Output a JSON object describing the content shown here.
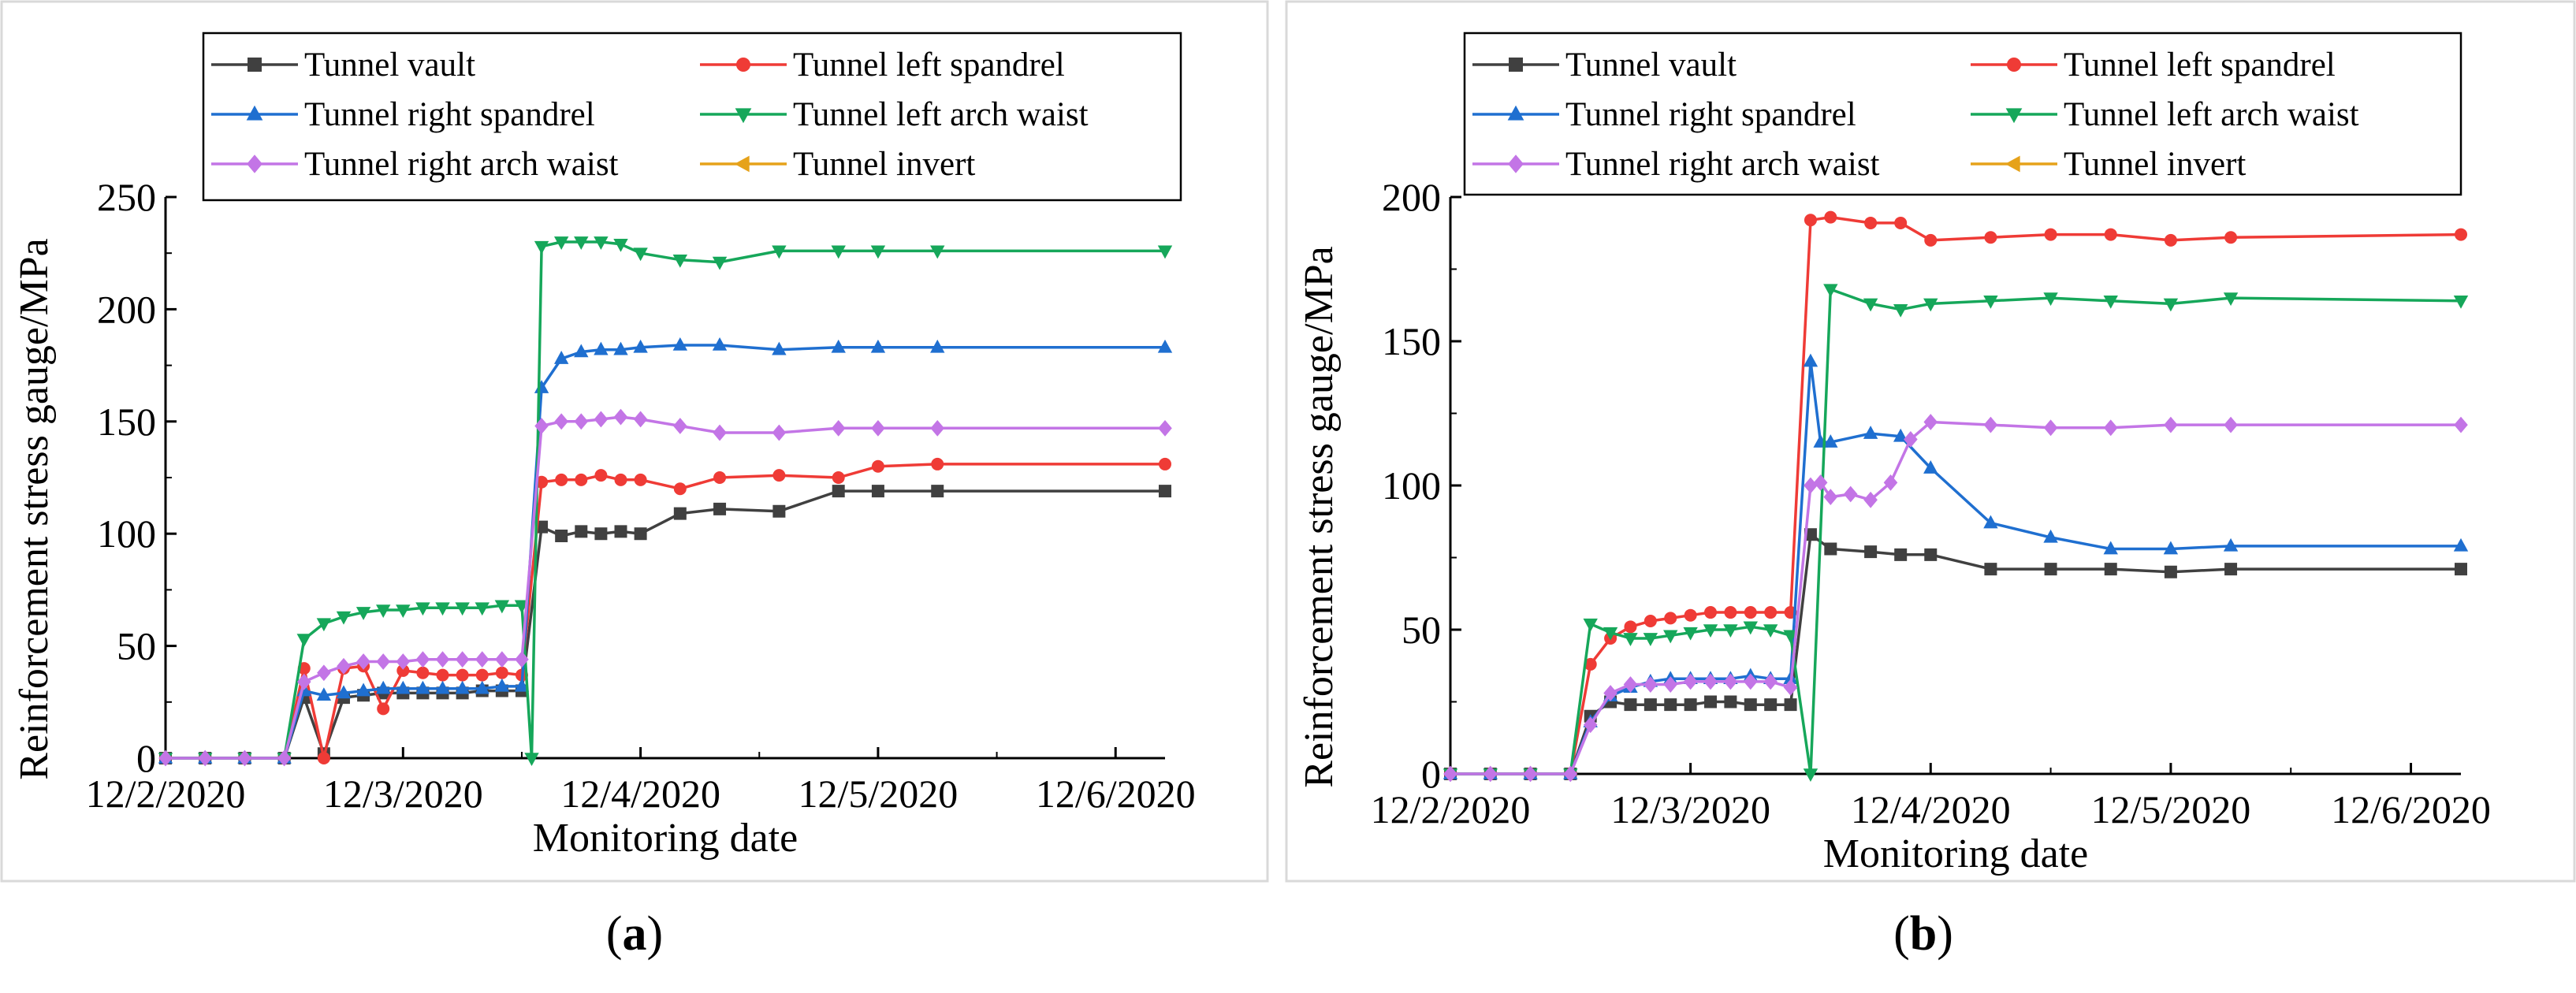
{
  "chart_data": [
    {
      "type": "line",
      "panel_label": "a",
      "xlabel": "Monitoring date",
      "ylabel": "Reinforcement stress gauge/MPa",
      "x_unit": "date",
      "xlim": [
        "12/2/2020 00:00",
        "12/6/2020 05:00"
      ],
      "ylim": [
        0,
        250
      ],
      "x_ticks": [
        "12/2/2020",
        "12/3/2020",
        "12/4/2020",
        "12/5/2020",
        "12/6/2020"
      ],
      "y_ticks": [
        0,
        50,
        100,
        150,
        200,
        250
      ],
      "grid": false,
      "legend_placement": "top",
      "series": [
        {
          "name": "Tunnel vault",
          "color": "#404040",
          "marker": "square",
          "x": [
            "12/2/2020 00:00",
            "12/2/2020 04:00",
            "12/2/2020 08:00",
            "12/2/2020 12:00",
            "12/2/2020 14:00",
            "12/2/2020 16:00",
            "12/2/2020 18:00",
            "12/2/2020 20:00",
            "12/2/2020 22:00",
            "12/3/2020 00:00",
            "12/3/2020 02:00",
            "12/3/2020 04:00",
            "12/3/2020 06:00",
            "12/3/2020 08:00",
            "12/3/2020 10:00",
            "12/3/2020 12:00",
            "12/3/2020 14:00",
            "12/3/2020 16:00",
            "12/3/2020 18:00",
            "12/3/2020 20:00",
            "12/3/2020 22:00",
            "12/4/2020 00:00",
            "12/4/2020 04:00",
            "12/4/2020 08:00",
            "12/4/2020 14:00",
            "12/4/2020 20:00",
            "12/5/2020 00:00",
            "12/5/2020 06:00",
            "12/6/2020 05:00"
          ],
          "y": [
            0,
            0,
            0,
            0,
            27,
            2,
            27,
            28,
            29,
            29,
            29,
            29,
            29,
            30,
            30,
            30,
            103,
            99,
            101,
            100,
            101,
            100,
            109,
            111,
            110,
            119,
            119,
            119,
            119
          ]
        },
        {
          "name": "Tunnel left spandrel",
          "color": "#ef3b36",
          "marker": "circle",
          "x": [
            "12/2/2020 00:00",
            "12/2/2020 04:00",
            "12/2/2020 08:00",
            "12/2/2020 12:00",
            "12/2/2020 14:00",
            "12/2/2020 16:00",
            "12/2/2020 18:00",
            "12/2/2020 20:00",
            "12/2/2020 22:00",
            "12/3/2020 00:00",
            "12/3/2020 02:00",
            "12/3/2020 04:00",
            "12/3/2020 06:00",
            "12/3/2020 08:00",
            "12/3/2020 10:00",
            "12/3/2020 12:00",
            "12/3/2020 14:00",
            "12/3/2020 16:00",
            "12/3/2020 18:00",
            "12/3/2020 20:00",
            "12/3/2020 22:00",
            "12/4/2020 00:00",
            "12/4/2020 04:00",
            "12/4/2020 08:00",
            "12/4/2020 14:00",
            "12/4/2020 20:00",
            "12/5/2020 00:00",
            "12/5/2020 06:00",
            "12/6/2020 05:00"
          ],
          "y": [
            0,
            0,
            0,
            0,
            40,
            0,
            40,
            41,
            22,
            39,
            38,
            37,
            37,
            37,
            38,
            37,
            123,
            124,
            124,
            126,
            124,
            124,
            120,
            125,
            126,
            125,
            130,
            131,
            131
          ]
        },
        {
          "name": "Tunnel right spandrel",
          "color": "#1f6fd0",
          "marker": "triangle-up",
          "x": [
            "12/2/2020 00:00",
            "12/2/2020 04:00",
            "12/2/2020 08:00",
            "12/2/2020 12:00",
            "12/2/2020 14:00",
            "12/2/2020 16:00",
            "12/2/2020 18:00",
            "12/2/2020 20:00",
            "12/2/2020 22:00",
            "12/3/2020 00:00",
            "12/3/2020 02:00",
            "12/3/2020 04:00",
            "12/3/2020 06:00",
            "12/3/2020 08:00",
            "12/3/2020 10:00",
            "12/3/2020 12:00",
            "12/3/2020 14:00",
            "12/3/2020 16:00",
            "12/3/2020 18:00",
            "12/3/2020 20:00",
            "12/3/2020 22:00",
            "12/4/2020 00:00",
            "12/4/2020 04:00",
            "12/4/2020 08:00",
            "12/4/2020 14:00",
            "12/4/2020 20:00",
            "12/5/2020 00:00",
            "12/5/2020 06:00",
            "12/6/2020 05:00"
          ],
          "y": [
            0,
            0,
            0,
            0,
            30,
            28,
            29,
            30,
            31,
            31,
            31,
            31,
            31,
            31,
            32,
            32,
            165,
            178,
            181,
            182,
            182,
            183,
            184,
            184,
            182,
            183,
            183,
            183,
            183
          ]
        },
        {
          "name": "Tunnel left arch waist",
          "color": "#16a75a",
          "marker": "triangle-down",
          "x": [
            "12/2/2020 00:00",
            "12/2/2020 04:00",
            "12/2/2020 08:00",
            "12/2/2020 12:00",
            "12/2/2020 14:00",
            "12/2/2020 16:00",
            "12/2/2020 18:00",
            "12/2/2020 20:00",
            "12/2/2020 22:00",
            "12/3/2020 00:00",
            "12/3/2020 02:00",
            "12/3/2020 04:00",
            "12/3/2020 06:00",
            "12/3/2020 08:00",
            "12/3/2020 10:00",
            "12/3/2020 12:00",
            "12/3/2020 13:00",
            "12/3/2020 14:00",
            "12/3/2020 16:00",
            "12/3/2020 18:00",
            "12/3/2020 20:00",
            "12/3/2020 22:00",
            "12/4/2020 00:00",
            "12/4/2020 04:00",
            "12/4/2020 08:00",
            "12/4/2020 14:00",
            "12/4/2020 20:00",
            "12/5/2020 00:00",
            "12/5/2020 06:00",
            "12/6/2020 05:00"
          ],
          "y": [
            0,
            0,
            0,
            0,
            53,
            60,
            63,
            65,
            66,
            66,
            67,
            67,
            67,
            67,
            68,
            68,
            0,
            228,
            230,
            230,
            230,
            229,
            225,
            222,
            221,
            226,
            226,
            226,
            226,
            226
          ]
        },
        {
          "name": "Tunnel right arch waist",
          "color": "#c375e6",
          "marker": "diamond",
          "x": [
            "12/2/2020 00:00",
            "12/2/2020 04:00",
            "12/2/2020 08:00",
            "12/2/2020 12:00",
            "12/2/2020 14:00",
            "12/2/2020 16:00",
            "12/2/2020 18:00",
            "12/2/2020 20:00",
            "12/2/2020 22:00",
            "12/3/2020 00:00",
            "12/3/2020 02:00",
            "12/3/2020 04:00",
            "12/3/2020 06:00",
            "12/3/2020 08:00",
            "12/3/2020 10:00",
            "12/3/2020 12:00",
            "12/3/2020 14:00",
            "12/3/2020 16:00",
            "12/3/2020 18:00",
            "12/3/2020 20:00",
            "12/3/2020 22:00",
            "12/4/2020 00:00",
            "12/4/2020 04:00",
            "12/4/2020 08:00",
            "12/4/2020 14:00",
            "12/4/2020 20:00",
            "12/5/2020 00:00",
            "12/5/2020 06:00",
            "12/6/2020 05:00"
          ],
          "y": [
            0,
            0,
            0,
            0,
            34,
            38,
            41,
            43,
            43,
            43,
            44,
            44,
            44,
            44,
            44,
            44,
            148,
            150,
            150,
            151,
            152,
            151,
            148,
            145,
            145,
            147,
            147,
            147,
            147
          ]
        },
        {
          "name": "Tunnel invert",
          "color": "#e6a21a",
          "marker": "triangle-left",
          "x": [],
          "y": []
        }
      ]
    },
    {
      "type": "line",
      "panel_label": "b",
      "xlabel": "Monitoring date",
      "ylabel": "Reinforcement stress gauge/MPa",
      "x_unit": "date",
      "xlim": [
        "12/2/2020 00:00",
        "12/6/2020 05:00"
      ],
      "ylim": [
        0,
        200
      ],
      "x_ticks": [
        "12/2/2020",
        "12/3/2020",
        "12/4/2020",
        "12/5/2020",
        "12/6/2020"
      ],
      "y_ticks": [
        0,
        50,
        100,
        150,
        200
      ],
      "grid": false,
      "legend_placement": "top",
      "series": [
        {
          "name": "Tunnel vault",
          "color": "#404040",
          "marker": "square",
          "x": [
            "12/2/2020 00:00",
            "12/2/2020 04:00",
            "12/2/2020 08:00",
            "12/2/2020 12:00",
            "12/2/2020 14:00",
            "12/2/2020 16:00",
            "12/2/2020 18:00",
            "12/2/2020 20:00",
            "12/2/2020 22:00",
            "12/3/2020 00:00",
            "12/3/2020 02:00",
            "12/3/2020 04:00",
            "12/3/2020 06:00",
            "12/3/2020 08:00",
            "12/3/2020 10:00",
            "12/3/2020 12:00",
            "12/3/2020 14:00",
            "12/3/2020 18:00",
            "12/3/2020 21:00",
            "12/4/2020 00:00",
            "12/4/2020 06:00",
            "12/4/2020 12:00",
            "12/4/2020 18:00",
            "12/5/2020 00:00",
            "12/5/2020 06:00",
            "12/6/2020 05:00"
          ],
          "y": [
            0,
            0,
            0,
            0,
            20,
            25,
            24,
            24,
            24,
            24,
            25,
            25,
            24,
            24,
            24,
            83,
            78,
            77,
            76,
            76,
            71,
            71,
            71,
            70,
            71,
            71
          ]
        },
        {
          "name": "Tunnel left spandrel",
          "color": "#ef3b36",
          "marker": "circle",
          "x": [
            "12/2/2020 00:00",
            "12/2/2020 04:00",
            "12/2/2020 08:00",
            "12/2/2020 12:00",
            "12/2/2020 14:00",
            "12/2/2020 16:00",
            "12/2/2020 18:00",
            "12/2/2020 20:00",
            "12/2/2020 22:00",
            "12/3/2020 00:00",
            "12/3/2020 02:00",
            "12/3/2020 04:00",
            "12/3/2020 06:00",
            "12/3/2020 08:00",
            "12/3/2020 10:00",
            "12/3/2020 12:00",
            "12/3/2020 14:00",
            "12/3/2020 18:00",
            "12/3/2020 21:00",
            "12/4/2020 00:00",
            "12/4/2020 06:00",
            "12/4/2020 12:00",
            "12/4/2020 18:00",
            "12/5/2020 00:00",
            "12/5/2020 06:00",
            "12/6/2020 05:00"
          ],
          "y": [
            0,
            0,
            0,
            0,
            38,
            47,
            51,
            53,
            54,
            55,
            56,
            56,
            56,
            56,
            56,
            192,
            193,
            191,
            191,
            185,
            186,
            187,
            187,
            185,
            186,
            187
          ]
        },
        {
          "name": "Tunnel right spandrel",
          "color": "#1f6fd0",
          "marker": "triangle-up",
          "x": [
            "12/2/2020 00:00",
            "12/2/2020 04:00",
            "12/2/2020 08:00",
            "12/2/2020 12:00",
            "12/2/2020 14:00",
            "12/2/2020 16:00",
            "12/2/2020 18:00",
            "12/2/2020 20:00",
            "12/2/2020 22:00",
            "12/3/2020 00:00",
            "12/3/2020 02:00",
            "12/3/2020 04:00",
            "12/3/2020 06:00",
            "12/3/2020 08:00",
            "12/3/2020 10:00",
            "12/3/2020 12:00",
            "12/3/2020 13:00",
            "12/3/2020 14:00",
            "12/3/2020 18:00",
            "12/3/2020 21:00",
            "12/4/2020 00:00",
            "12/4/2020 06:00",
            "12/4/2020 12:00",
            "12/4/2020 18:00",
            "12/5/2020 00:00",
            "12/5/2020 06:00",
            "12/6/2020 05:00"
          ],
          "y": [
            0,
            0,
            0,
            0,
            18,
            27,
            30,
            32,
            33,
            33,
            33,
            33,
            34,
            33,
            33,
            143,
            115,
            115,
            118,
            117,
            106,
            87,
            82,
            78,
            78,
            79,
            79
          ]
        },
        {
          "name": "Tunnel left arch waist",
          "color": "#16a75a",
          "marker": "triangle-down",
          "x": [
            "12/2/2020 00:00",
            "12/2/2020 04:00",
            "12/2/2020 08:00",
            "12/2/2020 12:00",
            "12/2/2020 14:00",
            "12/2/2020 16:00",
            "12/2/2020 18:00",
            "12/2/2020 20:00",
            "12/2/2020 22:00",
            "12/3/2020 00:00",
            "12/3/2020 02:00",
            "12/3/2020 04:00",
            "12/3/2020 06:00",
            "12/3/2020 08:00",
            "12/3/2020 10:00",
            "12/3/2020 12:00",
            "12/3/2020 14:00",
            "12/3/2020 18:00",
            "12/3/2020 21:00",
            "12/4/2020 00:00",
            "12/4/2020 06:00",
            "12/4/2020 12:00",
            "12/4/2020 18:00",
            "12/5/2020 00:00",
            "12/5/2020 06:00",
            "12/6/2020 05:00"
          ],
          "y": [
            0,
            0,
            0,
            0,
            52,
            49,
            47,
            47,
            48,
            49,
            50,
            50,
            51,
            50,
            48,
            0,
            168,
            163,
            161,
            163,
            164,
            165,
            164,
            163,
            165,
            164
          ]
        },
        {
          "name": "Tunnel right arch waist",
          "color": "#c375e6",
          "marker": "diamond",
          "x": [
            "12/2/2020 00:00",
            "12/2/2020 04:00",
            "12/2/2020 08:00",
            "12/2/2020 12:00",
            "12/2/2020 14:00",
            "12/2/2020 16:00",
            "12/2/2020 18:00",
            "12/2/2020 20:00",
            "12/2/2020 22:00",
            "12/3/2020 00:00",
            "12/3/2020 02:00",
            "12/3/2020 04:00",
            "12/3/2020 06:00",
            "12/3/2020 08:00",
            "12/3/2020 10:00",
            "12/3/2020 12:00",
            "12/3/2020 13:00",
            "12/3/2020 14:00",
            "12/3/2020 16:00",
            "12/3/2020 18:00",
            "12/3/2020 20:00",
            "12/3/2020 22:00",
            "12/4/2020 00:00",
            "12/4/2020 06:00",
            "12/4/2020 12:00",
            "12/4/2020 18:00",
            "12/5/2020 00:00",
            "12/5/2020 06:00",
            "12/6/2020 05:00"
          ],
          "y": [
            0,
            0,
            0,
            0,
            17,
            28,
            31,
            31,
            31,
            32,
            32,
            32,
            32,
            32,
            30,
            100,
            101,
            96,
            97,
            95,
            101,
            116,
            122,
            121,
            120,
            120,
            121,
            121,
            121
          ]
        },
        {
          "name": "Tunnel invert",
          "color": "#e6a21a",
          "marker": "triangle-left",
          "x": [],
          "y": []
        }
      ]
    }
  ]
}
